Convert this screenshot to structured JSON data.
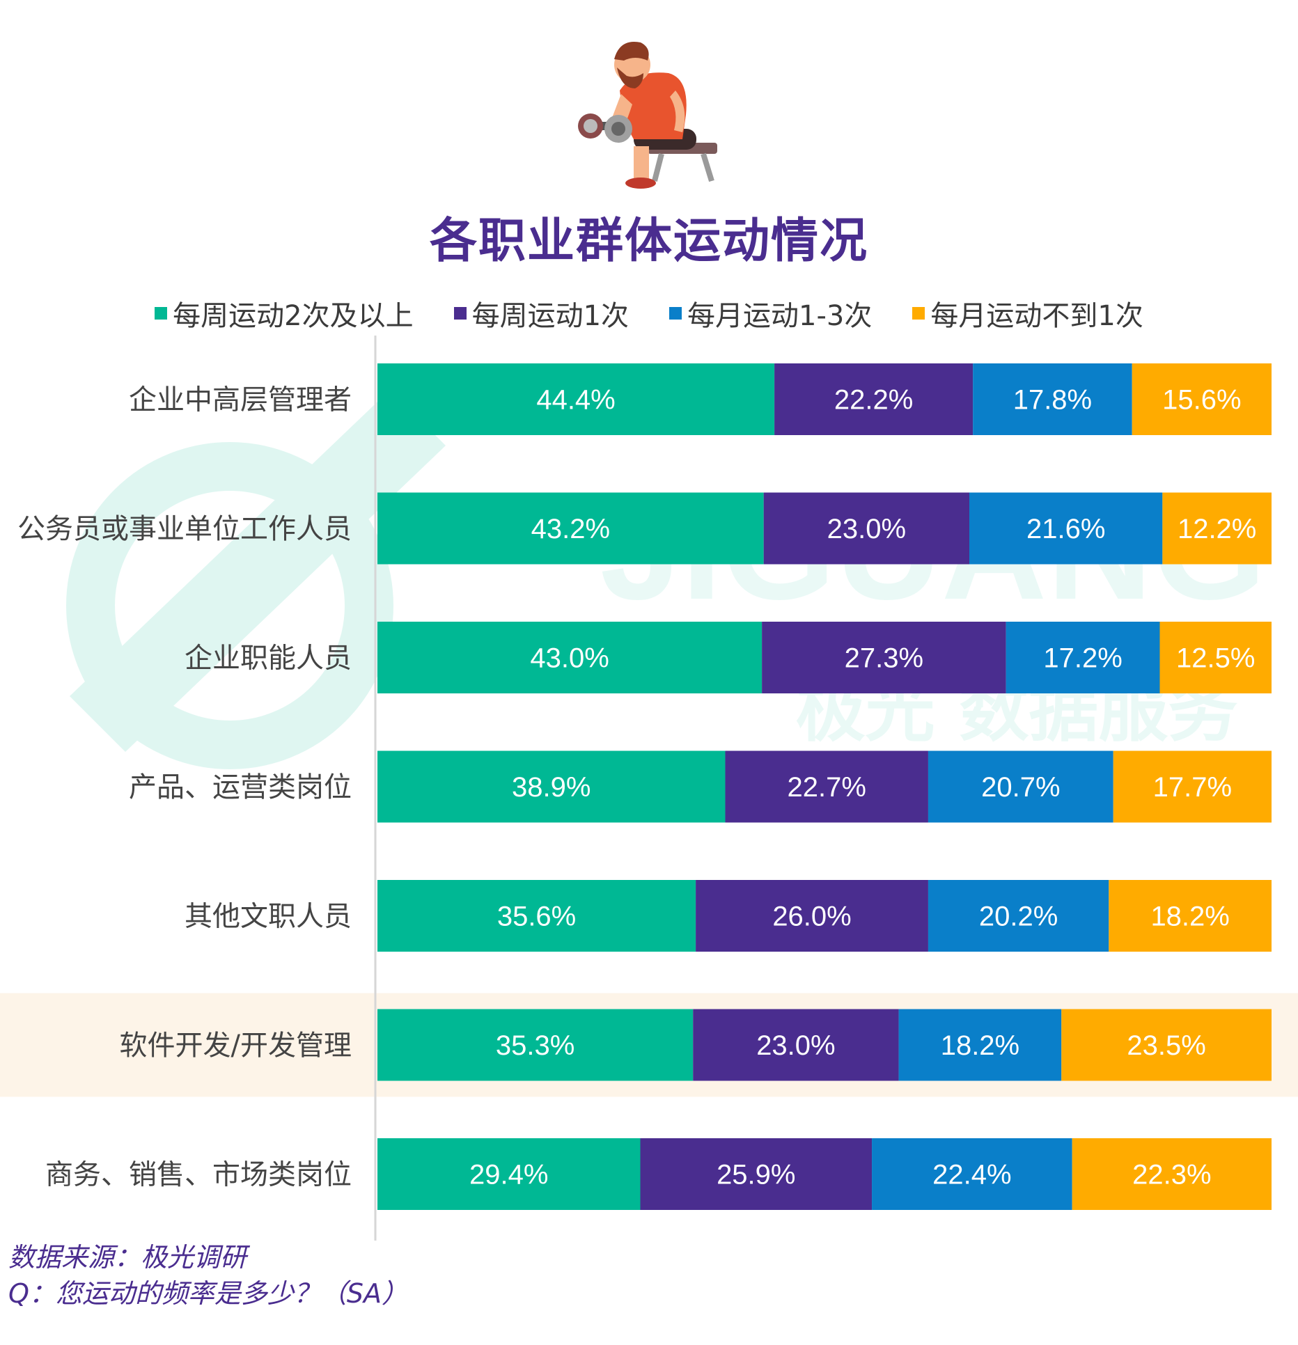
{
  "title": "各职业群体运动情况",
  "legend": [
    {
      "name": "每周运动2次及以上",
      "color": "#00b894"
    },
    {
      "name": "每周运动1次",
      "color": "#4a2d8f"
    },
    {
      "name": "每月运动1-3次",
      "color": "#0a7fc9"
    },
    {
      "name": "每月运动不到1次",
      "color": "#ffab00"
    }
  ],
  "watermark": {
    "en": "JIGUANG",
    "cn": "极光 数据服务"
  },
  "source_line": "数据来源：极光调研",
  "question_line": "Q：您运动的频率是多少？（SA）",
  "highlight_color": "#fdf4e8",
  "chart_data": {
    "type": "bar",
    "orientation": "horizontal",
    "stacked": true,
    "title": "各职业群体运动情况",
    "categories": [
      "企业中高层管理者",
      "公务员或事业单位工作人员",
      "企业职能人员",
      "产品、运营类岗位",
      "其他文职人员",
      "软件开发/开发管理",
      "商务、销售、市场类岗位"
    ],
    "highlighted_category": "软件开发/开发管理",
    "series": [
      {
        "name": "每周运动2次及以上",
        "color": "#00b894",
        "values": [
          44.4,
          43.2,
          43.0,
          38.9,
          35.6,
          35.3,
          29.4
        ]
      },
      {
        "name": "每周运动1次",
        "color": "#4a2d8f",
        "values": [
          22.2,
          23.0,
          27.3,
          22.7,
          26.0,
          23.0,
          25.9
        ]
      },
      {
        "name": "每月运动1-3次",
        "color": "#0a7fc9",
        "values": [
          17.8,
          21.6,
          17.2,
          20.7,
          20.2,
          18.2,
          22.4
        ]
      },
      {
        "name": "每月运动不到1次",
        "color": "#ffab00",
        "values": [
          15.6,
          12.2,
          12.5,
          17.7,
          18.2,
          23.5,
          22.3
        ]
      }
    ],
    "value_format": "%",
    "xlim": [
      0,
      100
    ],
    "legend_position": "top",
    "grid": false
  }
}
